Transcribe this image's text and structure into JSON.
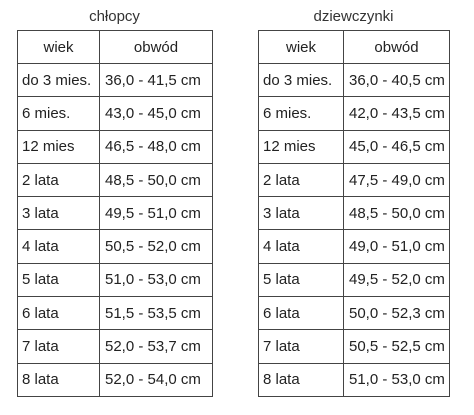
{
  "boys": {
    "title": "chłopcy",
    "headers": {
      "age": "wiek",
      "circumference": "obwód"
    },
    "rows": [
      {
        "age": "do 3 mies.",
        "size": "36,0 - 41,5 cm"
      },
      {
        "age": "6 mies.",
        "size": "43,0 - 45,0 cm"
      },
      {
        "age": "12 mies",
        "size": "46,5 - 48,0 cm"
      },
      {
        "age": "2 lata",
        "size": "48,5 - 50,0 cm"
      },
      {
        "age": "3 lata",
        "size": "49,5 - 51,0 cm"
      },
      {
        "age": "4 lata",
        "size": "50,5 - 52,0 cm"
      },
      {
        "age": "5 lata",
        "size": "51,0 - 53,0 cm"
      },
      {
        "age": "6 lata",
        "size": "51,5 - 53,5 cm"
      },
      {
        "age": "7 lata",
        "size": "52,0 - 53,7 cm"
      },
      {
        "age": "8 lata",
        "size": "52,0 - 54,0 cm"
      }
    ]
  },
  "girls": {
    "title": "dziewczynki",
    "headers": {
      "age": "wiek",
      "circumference": "obwód"
    },
    "rows": [
      {
        "age": "do 3 mies.",
        "size": "36,0 - 40,5 cm"
      },
      {
        "age": "6 mies.",
        "size": "42,0 - 43,5 cm"
      },
      {
        "age": "12 mies",
        "size": "45,0 - 46,5 cm"
      },
      {
        "age": "2 lata",
        "size": "47,5 - 49,0 cm"
      },
      {
        "age": "3 lata",
        "size": "48,5 - 50,0 cm"
      },
      {
        "age": "4 lata",
        "size": "49,0 - 51,0 cm"
      },
      {
        "age": "5 lata",
        "size": "49,5 - 52,0 cm"
      },
      {
        "age": "6 lata",
        "size": "50,0 - 52,3 cm"
      },
      {
        "age": "7 lata",
        "size": "50,5 - 52,5 cm"
      },
      {
        "age": "8 lata",
        "size": "51,0 - 53,0 cm"
      }
    ]
  }
}
